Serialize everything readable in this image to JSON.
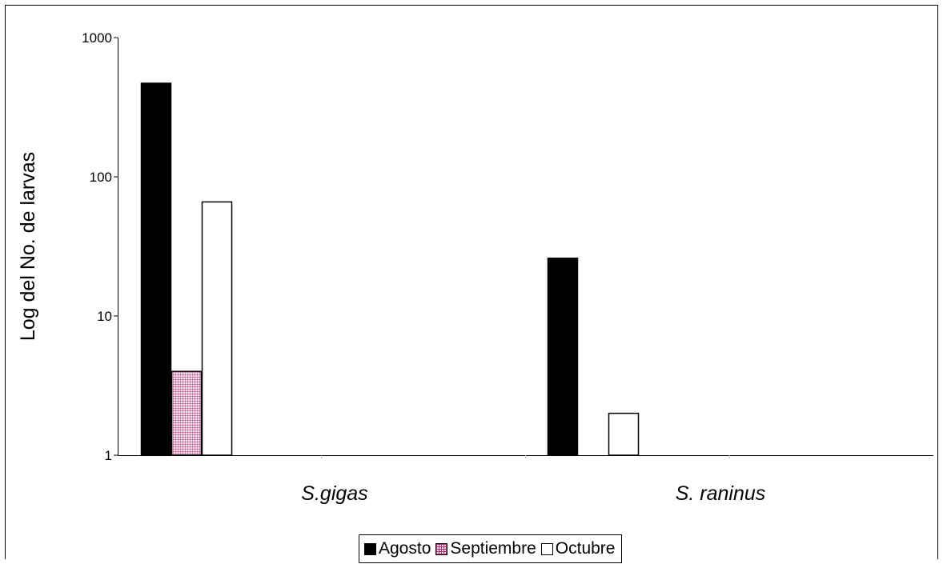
{
  "chart_data": {
    "type": "bar",
    "log_scale": true,
    "ylabel": "Log del No. de larvas",
    "xlabel": "",
    "ylim": [
      1,
      1000
    ],
    "yticks": [
      "1",
      "10",
      "100",
      "1000"
    ],
    "categories": [
      "S.gigas",
      "S. raninus"
    ],
    "series": [
      {
        "name": "Agosto",
        "values": [
          470,
          26
        ],
        "color": "#000000",
        "pattern": "solid"
      },
      {
        "name": "Septiembre",
        "values": [
          4,
          null
        ],
        "color": "#b03070",
        "pattern": "grid"
      },
      {
        "name": "Octubre",
        "values": [
          66,
          2
        ],
        "color": "#ffffff",
        "pattern": "outline"
      }
    ],
    "grid": false,
    "legend_position": "bottom"
  }
}
